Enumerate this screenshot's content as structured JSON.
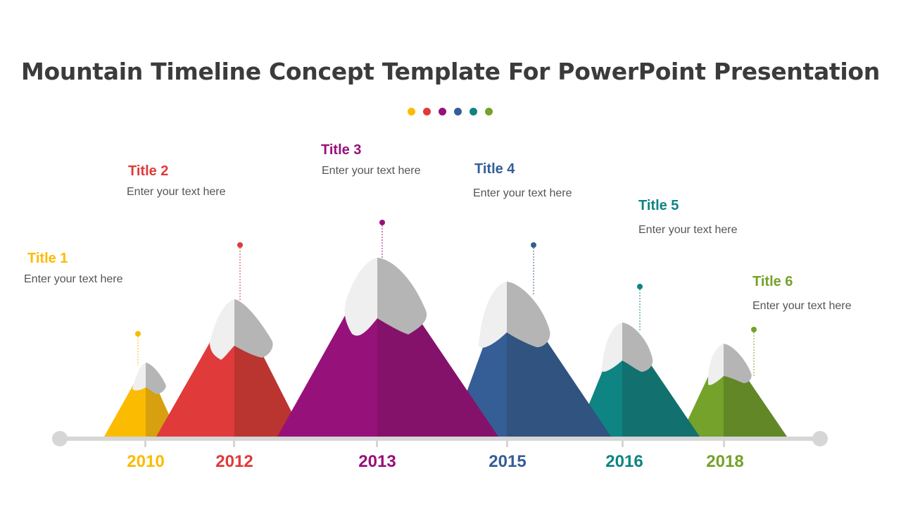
{
  "title": "Mountain Timeline Concept Template For PowerPoint Presentation",
  "header_dots": [
    "#FBBB00",
    "#E03A3A",
    "#97117A",
    "#355E96",
    "#0E8483",
    "#74A22A"
  ],
  "milestones": [
    {
      "title": "Title 1",
      "text": "Enter your text here",
      "year": "2010",
      "color": "#FBBB00",
      "shade": "#D6A00F"
    },
    {
      "title": "Title 2",
      "text": "Enter your text here",
      "year": "2012",
      "color": "#E03A3A",
      "shade": "#BA3430"
    },
    {
      "title": "Title 3",
      "text": "Enter your text here",
      "year": "2013",
      "color": "#97117A",
      "shade": "#85126A"
    },
    {
      "title": "Title 4",
      "text": "Enter your text here",
      "year": "2015",
      "color": "#355E96",
      "shade": "#30537F"
    },
    {
      "title": "Title 5",
      "text": "Enter your text here",
      "year": "2016",
      "color": "#0E8483",
      "shade": "#12706F"
    },
    {
      "title": "Title 6",
      "text": "Enter your text here",
      "year": "2018",
      "color": "#74A22A",
      "shade": "#628727"
    }
  ]
}
